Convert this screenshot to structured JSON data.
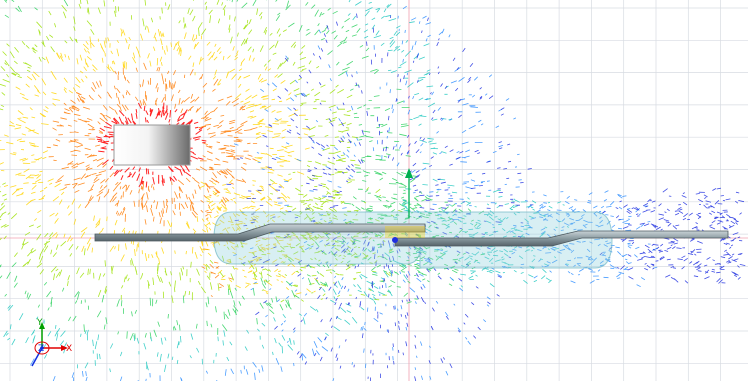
{
  "viewport": {
    "background": "#ffffff",
    "grid_color": "#d7dbe2",
    "origin_line_color": "#f0a0b0",
    "field_colors": [
      "#ff0000",
      "#ff7a00",
      "#ffd400",
      "#9be000",
      "#28d05a",
      "#20c8c0",
      "#2a8cff",
      "#1f2fe0"
    ]
  },
  "magnet": {
    "gradient_from": "#ffffff",
    "gradient_to": "#6a6a6a",
    "outline_color": "#9a9a9a"
  },
  "reed_switch": {
    "glass_color": "#8fd0dc",
    "lead_color": "#8a9aa0",
    "contact_colors": [
      "#ff3b00",
      "#ffd000"
    ]
  },
  "triad": {
    "x_label": "X",
    "y_label": "Y",
    "z_label": "Z",
    "x_color": "#e00000",
    "y_color": "#00a000",
    "z_color": "#1030e0"
  },
  "origin_arrow_color": "#00b050"
}
